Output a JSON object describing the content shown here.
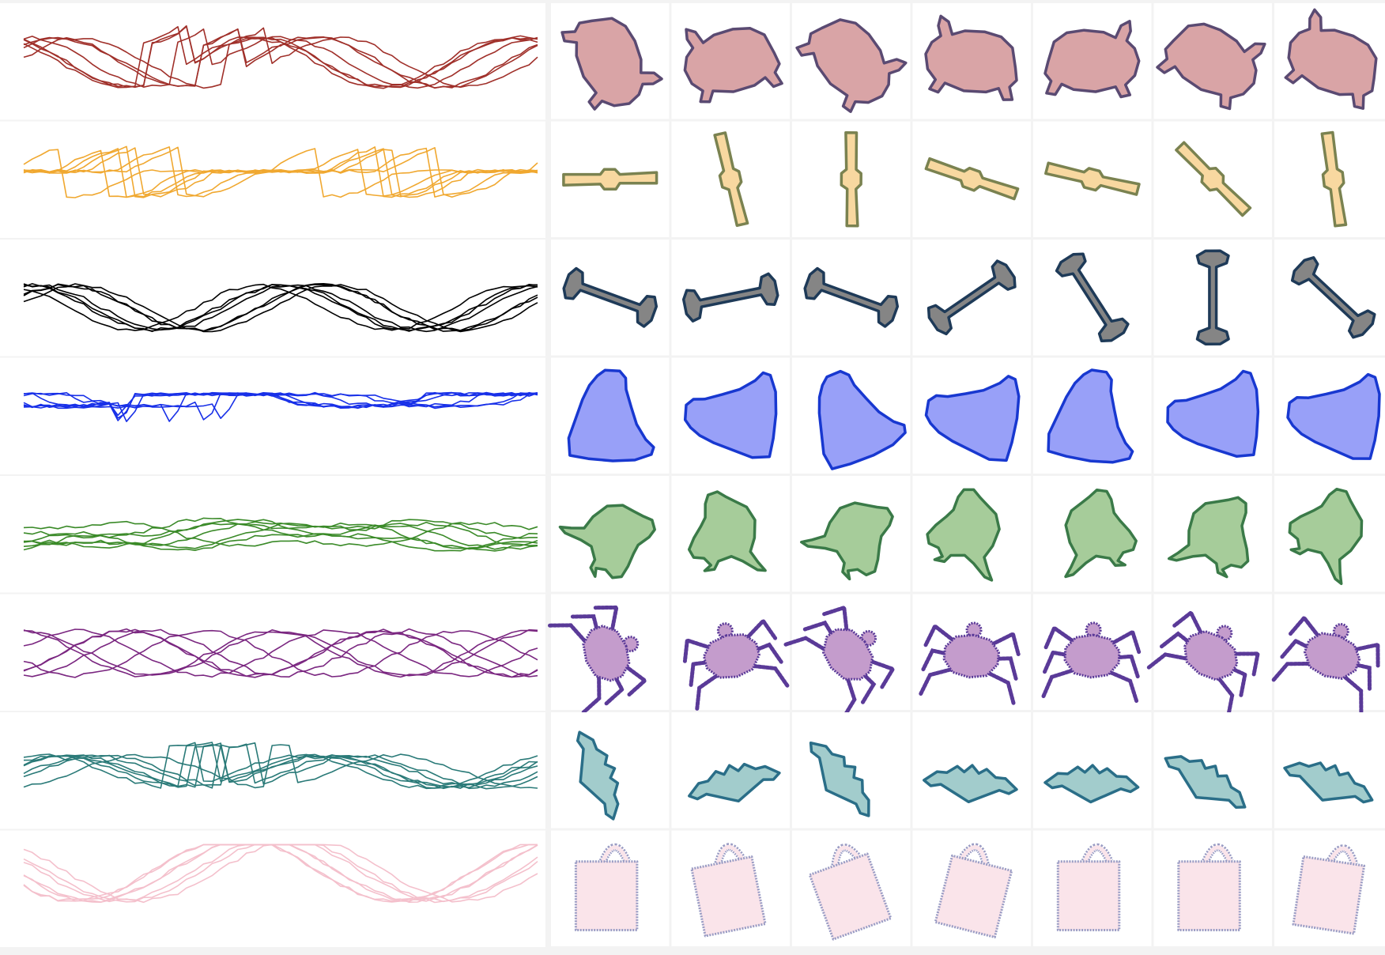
{
  "figure": {
    "rows": [
      {
        "category": "turtle",
        "colors": {
          "line": "#a0302a",
          "fill": "#d9a4a6",
          "stroke": "#5a4a72"
        }
      },
      {
        "category": "bone",
        "colors": {
          "line": "#f0a830",
          "fill": "#f8d8a0",
          "stroke": "#7a8250"
        }
      },
      {
        "category": "dumbbell",
        "colors": {
          "line": "#000000",
          "fill": "#858585",
          "stroke": "#1e3a58"
        }
      },
      {
        "category": "bell",
        "colors": {
          "line": "#1830e8",
          "fill": "#98a0f8",
          "stroke": "#1838d0"
        }
      },
      {
        "category": "bird",
        "colors": {
          "line": "#3a8a28",
          "fill": "#a6cc9a",
          "stroke": "#3a7a48"
        }
      },
      {
        "category": "beetle",
        "colors": {
          "line": "#7a2680",
          "fill": "#c49ccc",
          "stroke": "#5a3a98"
        }
      },
      {
        "category": "bat",
        "colors": {
          "line": "#2a7a78",
          "fill": "#a2cccc",
          "stroke": "#2a6e88"
        }
      },
      {
        "category": "mug",
        "colors": {
          "line": "#f4c0cc",
          "fill": "#fae4ea",
          "stroke": "#9a9cc4"
        }
      }
    ],
    "curves_per_row": 7,
    "shapes_per_row": 7,
    "background_color": "#f3f3f3",
    "cell_background": "#ffffff"
  }
}
